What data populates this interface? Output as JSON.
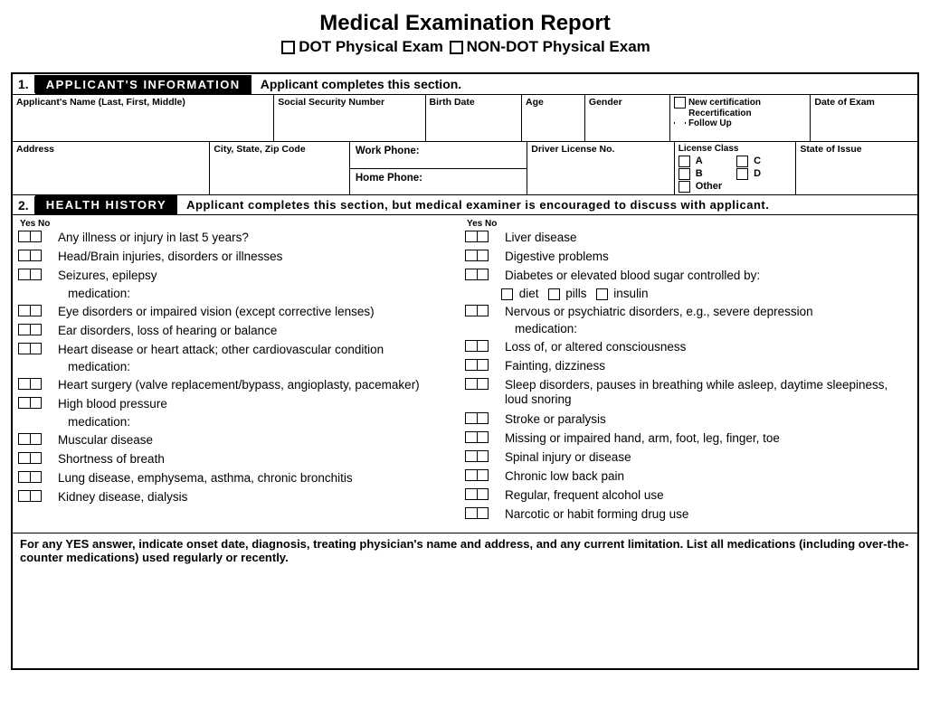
{
  "title": "Medical Examination Report",
  "exam_types": [
    "DOT Physical Exam",
    "NON-DOT Physical Exam"
  ],
  "section1": {
    "num": "1.",
    "name": "APPLICANT'S INFORMATION",
    "instr": "Applicant completes this section.",
    "row1": {
      "name": "Applicant's Name (Last, First, Middle)",
      "ssn": "Social Security Number",
      "birth": "Birth Date",
      "age": "Age",
      "gender": "Gender",
      "cert1": "New certification",
      "cert2": "Recertification",
      "cert3": "Follow Up",
      "doe": "Date of Exam"
    },
    "row2": {
      "address": "Address",
      "city": "City, State, Zip Code",
      "work": "Work Phone:",
      "home": "Home Phone:",
      "dln": "Driver License No.",
      "licclass": "License Class",
      "a": "A",
      "b": "B",
      "c": "C",
      "d": "D",
      "other": "Other",
      "state": "State of Issue"
    }
  },
  "section2": {
    "num": "2.",
    "name": "HEALTH HISTORY",
    "instr": "Applicant completes this section, but medical examiner is encouraged to discuss with applicant.",
    "yn": "Yes No",
    "left": [
      {
        "t": "Any illness or injury in last 5 years?"
      },
      {
        "t": "Head/Brain injuries, disorders or illnesses"
      },
      {
        "t": "Seizures, epilepsy",
        "sub": "medication:"
      },
      {
        "t": "Eye disorders or impaired vision (except corrective lenses)"
      },
      {
        "t": "Ear disorders, loss of hearing or balance"
      },
      {
        "t": "Heart disease or heart attack; other cardiovascular condition",
        "sub": "medication:"
      },
      {
        "t": "Heart surgery (valve replacement/bypass, angioplasty, pacemaker)"
      },
      {
        "t": "High blood pressure",
        "sub": "medication:"
      },
      {
        "t": "Muscular disease"
      },
      {
        "t": "Shortness of breath"
      },
      {
        "t": "Lung disease, emphysema, asthma, chronic bronchitis"
      },
      {
        "t": "Kidney disease, dialysis"
      }
    ],
    "right": [
      {
        "t": "Liver disease"
      },
      {
        "t": "Digestive problems"
      },
      {
        "t": "Diabetes or elevated blood sugar controlled by:",
        "opts": [
          "diet",
          "pills",
          "insulin"
        ]
      },
      {
        "t": "Nervous or psychiatric disorders, e.g., severe depression",
        "sub": "medication:"
      },
      {
        "t": "Loss of, or altered consciousness"
      },
      {
        "t": "Fainting, dizziness"
      },
      {
        "t": "Sleep disorders, pauses in breathing while asleep, daytime sleepiness, loud snoring"
      },
      {
        "t": "Stroke or paralysis"
      },
      {
        "t": "Missing or impaired hand, arm, foot, leg, finger, toe"
      },
      {
        "t": "Spinal injury or disease"
      },
      {
        "t": "Chronic low back pain"
      },
      {
        "t": "Regular, frequent alcohol use"
      },
      {
        "t": "Narcotic or habit forming drug use"
      }
    ],
    "notes": "For any YES answer, indicate onset date, diagnosis, treating physician's name and address, and any current limitation. List all medications (including over-the-counter medications) used regularly or recently."
  }
}
